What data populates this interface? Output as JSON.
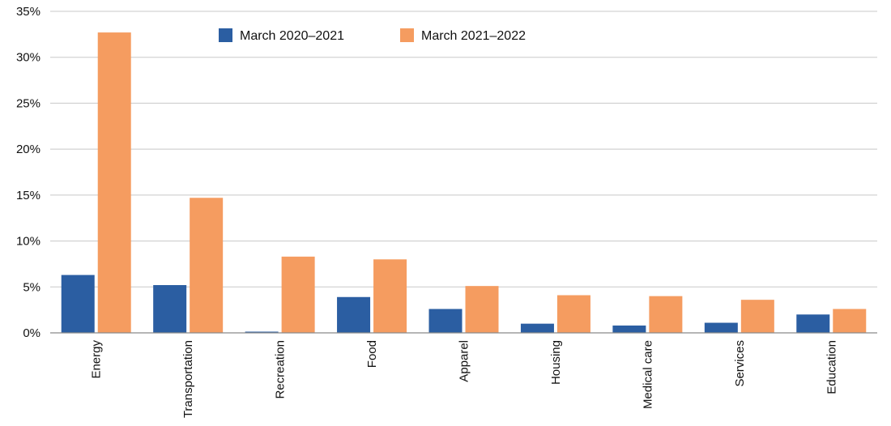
{
  "chart_data": {
    "type": "bar",
    "categories": [
      "Energy",
      "Transportation",
      "Recreation",
      "Food",
      "Apparel",
      "Housing",
      "Medical care",
      "Services",
      "Education"
    ],
    "series": [
      {
        "name": "March 2020–2021",
        "color": "#2b5ea2",
        "values": [
          6.3,
          5.2,
          0.1,
          3.9,
          2.6,
          1.0,
          0.8,
          1.1,
          2.0
        ]
      },
      {
        "name": "March 2021–2022",
        "color": "#f59c60",
        "values": [
          32.7,
          14.7,
          8.3,
          8.0,
          5.1,
          4.1,
          4.0,
          3.6,
          2.6
        ]
      }
    ],
    "ylim": [
      0,
      35
    ],
    "yticks": [
      0,
      5,
      10,
      15,
      20,
      25,
      30,
      35
    ],
    "ytick_labels": [
      "0%",
      "5%",
      "10%",
      "15%",
      "20%",
      "25%",
      "30%",
      "35%"
    ],
    "title": "",
    "xlabel": "",
    "ylabel": "",
    "grid": true,
    "legend_position": "top-left"
  }
}
